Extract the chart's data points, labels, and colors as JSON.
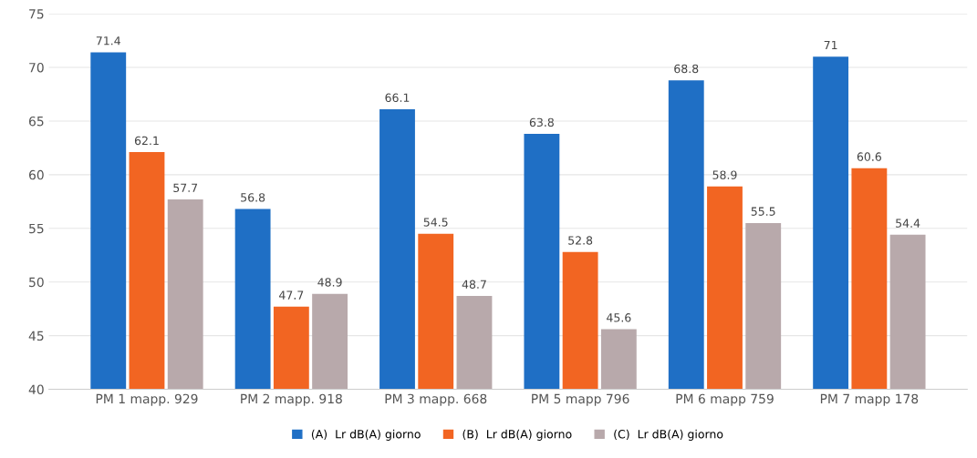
{
  "chart_data": {
    "type": "bar",
    "categories": [
      "PM 1 mapp. 929",
      "PM 2 mapp. 918",
      "PM 3 mapp. 668",
      "PM 5 mapp 796",
      "PM 6 mapp 759",
      "PM 7 mapp 178"
    ],
    "series": [
      {
        "name": "(A)  Lr dB(A) giorno",
        "color": "#1f6fc5",
        "values": [
          71.4,
          56.8,
          66.1,
          63.8,
          68.8,
          71
        ]
      },
      {
        "name": "(B)  Lr dB(A) giorno",
        "color": "#f26522",
        "values": [
          62.1,
          47.7,
          54.5,
          52.8,
          58.9,
          60.6
        ]
      },
      {
        "name": "(C)  Lr dB(A) giorno",
        "color": "#b8a9ab",
        "values": [
          57.7,
          48.9,
          48.7,
          45.6,
          55.5,
          54.4
        ]
      }
    ],
    "ylim": [
      40,
      75
    ],
    "yticks": [
      40,
      45,
      50,
      55,
      60,
      65,
      70,
      75
    ],
    "grid": "y",
    "legend": "bottom",
    "data_labels": true
  }
}
